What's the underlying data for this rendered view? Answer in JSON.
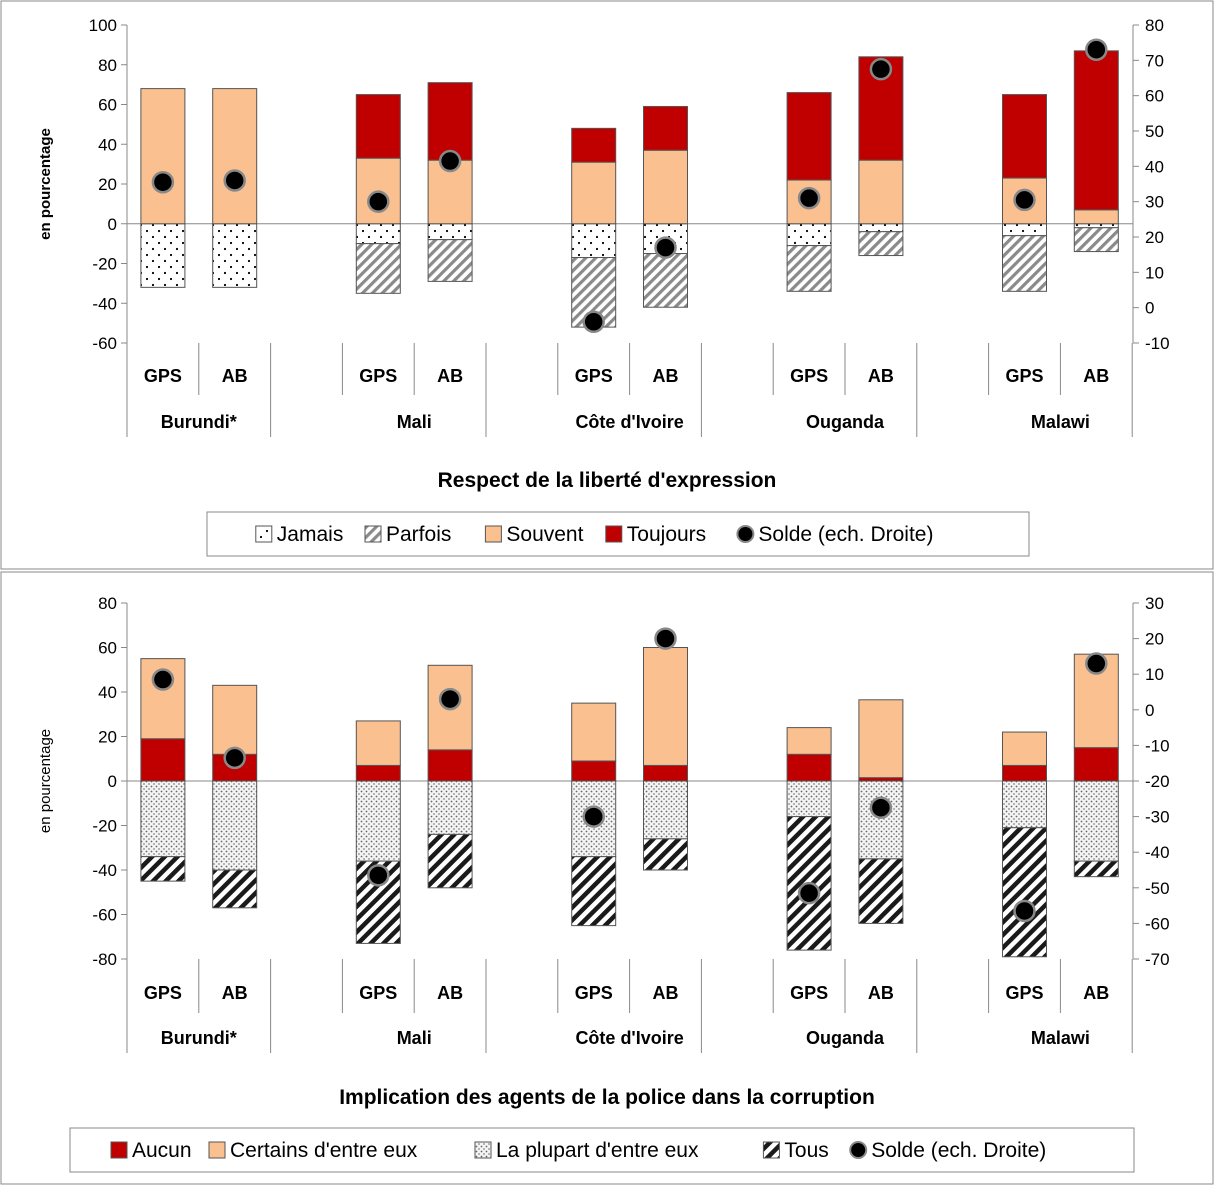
{
  "chart_data": [
    {
      "type": "bar",
      "stacked": true,
      "title": "Respect de la liberté d'expression",
      "ylabel": "en pourcentage",
      "ylim": [
        -60,
        100
      ],
      "yticks": [
        -60,
        -40,
        -20,
        0,
        20,
        40,
        60,
        80,
        100
      ],
      "y2lim": [
        -10,
        80
      ],
      "y2ticks": [
        -10,
        0,
        10,
        20,
        30,
        40,
        50,
        60,
        70,
        80
      ],
      "groups": [
        "Burundi*",
        "Mali",
        "Côte d'Ivoire",
        "Ouganda",
        "Malawi"
      ],
      "categories": [
        "GPS",
        "AB"
      ],
      "series": [
        {
          "name": "Jamais",
          "color": "#ffffff",
          "pattern": "dots",
          "values": [
            [
              -32,
              -32
            ],
            [
              -10,
              -8
            ],
            [
              -17,
              -15
            ],
            [
              -11,
              -4
            ],
            [
              -6,
              -2
            ]
          ]
        },
        {
          "name": "Parfois",
          "color": "#d0d0d0",
          "pattern": "diagonal-light",
          "values": [
            [
              0,
              0
            ],
            [
              -25,
              -21
            ],
            [
              -35,
              -27
            ],
            [
              -23,
              -12
            ],
            [
              -28,
              -12
            ]
          ]
        },
        {
          "name": "Souvent",
          "color": "#fac090",
          "values": [
            [
              68,
              68
            ],
            [
              33,
              32
            ],
            [
              31,
              37
            ],
            [
              22,
              32
            ],
            [
              23,
              7
            ]
          ]
        },
        {
          "name": "Toujours",
          "color": "#c00000",
          "values": [
            [
              0,
              0
            ],
            [
              32,
              39
            ],
            [
              17,
              22
            ],
            [
              44,
              52
            ],
            [
              42,
              80
            ]
          ]
        }
      ],
      "balance": {
        "name": "Solde (ech. Droite)",
        "color": "#000000",
        "axis": "right",
        "values": [
          [
            35.5,
            36
          ],
          [
            30,
            41.5
          ],
          [
            -4,
            17
          ],
          [
            31,
            67.5
          ],
          [
            30.5,
            73
          ]
        ]
      },
      "legend": [
        "Jamais",
        "Parfois",
        "Souvent",
        "Toujours",
        "Solde (ech. Droite)"
      ],
      "legend_position": "bottom",
      "grid": false
    },
    {
      "type": "bar",
      "stacked": true,
      "title": "Implication des agents de la police dans la corruption",
      "ylabel": "en pourcentage",
      "ylim": [
        -80,
        80
      ],
      "yticks": [
        -80,
        -60,
        -40,
        -20,
        0,
        20,
        40,
        60,
        80
      ],
      "y2lim": [
        -70,
        30
      ],
      "y2ticks": [
        -70,
        -60,
        -50,
        -40,
        -30,
        -20,
        -10,
        0,
        10,
        20,
        30
      ],
      "groups": [
        "Burundi*",
        "Mali",
        "Côte d'Ivoire",
        "Ouganda",
        "Malawi"
      ],
      "categories": [
        "GPS",
        "AB"
      ],
      "series": [
        {
          "name": "Aucun",
          "color": "#c00000",
          "values": [
            [
              19,
              12
            ],
            [
              7,
              14
            ],
            [
              9,
              7
            ],
            [
              12,
              1.5
            ],
            [
              7,
              15
            ]
          ]
        },
        {
          "name": "Certains d'entre eux",
          "color": "#fac090",
          "values": [
            [
              36,
              31
            ],
            [
              20,
              38
            ],
            [
              26,
              53
            ],
            [
              12,
              35
            ],
            [
              15,
              42
            ]
          ]
        },
        {
          "name": "La plupart d'entre eux",
          "color": "#eeeeee",
          "pattern": "dense-dots",
          "values": [
            [
              -34,
              -40
            ],
            [
              -36,
              -24
            ],
            [
              -34,
              -26
            ],
            [
              -16,
              -35
            ],
            [
              -21,
              -36
            ]
          ]
        },
        {
          "name": "Tous",
          "color": "#ffffff",
          "pattern": "diagonal-heavy",
          "values": [
            [
              -11,
              -17
            ],
            [
              -37,
              -24
            ],
            [
              -31,
              -14
            ],
            [
              -60,
              -29
            ],
            [
              -58,
              -7
            ]
          ]
        }
      ],
      "balance": {
        "name": "Solde (ech. Droite)",
        "color": "#000000",
        "axis": "right",
        "values": [
          [
            8.5,
            -13.5
          ],
          [
            -46.5,
            3
          ],
          [
            -30,
            20
          ],
          [
            -51.5,
            -27.5
          ],
          [
            -56.5,
            13
          ]
        ]
      },
      "legend": [
        "Aucun",
        "Certains d'entre eux",
        "La plupart d'entre eux",
        "Tous",
        "Solde (ech. Droite)"
      ],
      "legend_position": "bottom",
      "grid": false
    }
  ]
}
